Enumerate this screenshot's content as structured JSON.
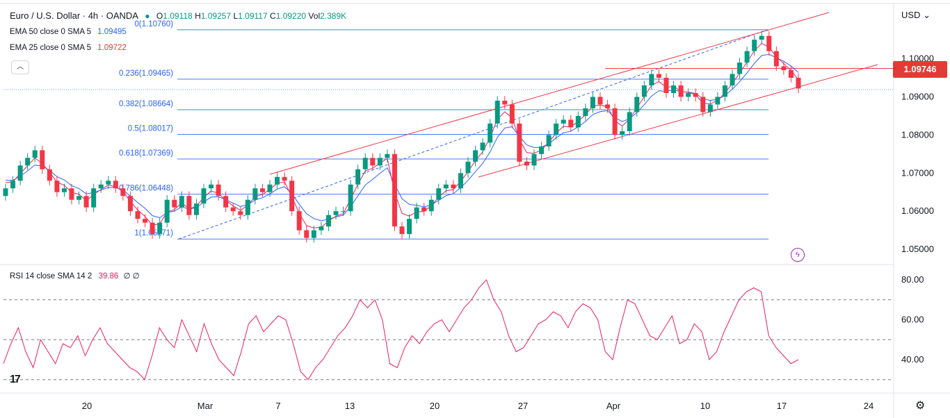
{
  "header": {
    "symbol": "Euro / U.S. Dollar · 4h · OANDA",
    "o_label": "O",
    "o": "1.09118",
    "h_label": "H",
    "h": "1.09257",
    "l_label": "L",
    "l": "1.09117",
    "c_label": "C",
    "c": "1.09220",
    "vol_label": "Vol",
    "vol": "2.389K"
  },
  "indicators": {
    "ema50_label": "EMA 50 close 0 SMA 5",
    "ema50_value": "1.09495",
    "ema25_label": "EMA 25 close 0 SMA 5",
    "ema25_value": "1.09722",
    "rsi_label": "RSI 14 close SMA 14 2",
    "rsi_value": "39.86",
    "rsi_extra": "∅ ∅"
  },
  "price_axis": {
    "currency": "USD",
    "ticks": [
      "1.10000",
      "1.09000",
      "1.08000",
      "1.07000",
      "1.06000",
      "1.05000"
    ],
    "current_price": "1.09746"
  },
  "rsi_axis": {
    "ticks": [
      "80.00",
      "60.00",
      "40.00"
    ]
  },
  "time_axis": {
    "ticks": [
      "20",
      "Mar",
      "7",
      "13",
      "20",
      "27",
      "Apr",
      "10",
      "17",
      "24"
    ]
  },
  "colors": {
    "up": "#089981",
    "down": "#f23645",
    "ema50": "#2962ff",
    "ema25": "#e91e63",
    "channel": "#f23645",
    "fib": "#2962ff",
    "rsi": "#e91e63",
    "badge": "#e53935"
  },
  "chart_data": [
    {
      "type": "candlestick",
      "title": "Euro / U.S. Dollar · 4h · OANDA",
      "ylim": [
        1.047,
        1.1105
      ],
      "close_series": [
        1.066,
        1.068,
        1.072,
        1.074,
        1.076,
        1.071,
        1.068,
        1.065,
        1.066,
        1.063,
        1.064,
        1.061,
        1.066,
        1.067,
        1.068,
        1.066,
        1.064,
        1.06,
        1.058,
        1.057,
        1.054,
        1.057,
        1.063,
        1.061,
        1.064,
        1.059,
        1.062,
        1.066,
        1.067,
        1.064,
        1.061,
        1.06,
        1.059,
        1.063,
        1.066,
        1.065,
        1.067,
        1.069,
        1.068,
        1.06,
        1.055,
        1.053,
        1.055,
        1.056,
        1.059,
        1.06,
        1.06,
        1.067,
        1.071,
        1.074,
        1.072,
        1.074,
        1.075,
        1.056,
        1.054,
        1.058,
        1.061,
        1.06,
        1.063,
        1.066,
        1.067,
        1.066,
        1.07,
        1.073,
        1.076,
        1.078,
        1.083,
        1.089,
        1.088,
        1.083,
        1.073,
        1.072,
        1.075,
        1.077,
        1.08,
        1.083,
        1.084,
        1.082,
        1.085,
        1.087,
        1.09,
        1.088,
        1.087,
        1.08,
        1.081,
        1.086,
        1.09,
        1.093,
        1.096,
        1.095,
        1.091,
        1.093,
        1.09,
        1.091,
        1.09,
        1.086,
        1.088,
        1.09,
        1.093,
        1.096,
        1.099,
        1.102,
        1.105,
        1.106,
        1.102,
        1.098,
        1.097,
        1.095,
        1.0922
      ],
      "fib_levels": [
        {
          "label": "0(1.10760)",
          "value": 1.1076
        },
        {
          "label": "0.236(1.09465)",
          "value": 1.09465
        },
        {
          "label": "0.382(1.08664)",
          "value": 1.08664
        },
        {
          "label": "0.5(1.08017)",
          "value": 1.08017
        },
        {
          "label": "0.618(1.07369)",
          "value": 1.07369
        },
        {
          "label": "0.786(1.06448)",
          "value": 1.06448
        },
        {
          "label": "1(1.05271)",
          "value": 1.05271
        }
      ],
      "horizontal_level": 1.09746
    },
    {
      "type": "line",
      "title": "RSI 14 close SMA 14 2",
      "ylim": [
        27,
        84
      ],
      "levels": [
        70,
        50,
        30
      ],
      "values": [
        38,
        48,
        56,
        44,
        36,
        50,
        44,
        38,
        48,
        46,
        52,
        42,
        50,
        56,
        48,
        44,
        40,
        36,
        34,
        30,
        42,
        56,
        50,
        46,
        60,
        52,
        44,
        58,
        48,
        40,
        36,
        32,
        44,
        58,
        62,
        54,
        58,
        62,
        60,
        48,
        34,
        30,
        36,
        40,
        46,
        52,
        56,
        62,
        70,
        66,
        70,
        60,
        38,
        36,
        46,
        52,
        48,
        54,
        58,
        60,
        54,
        60,
        66,
        70,
        76,
        80,
        70,
        64,
        52,
        44,
        46,
        52,
        58,
        60,
        64,
        62,
        56,
        64,
        68,
        66,
        60,
        44,
        40,
        56,
        70,
        68,
        60,
        52,
        50,
        56,
        62,
        48,
        50,
        58,
        54,
        40,
        44,
        54,
        62,
        70,
        74,
        76,
        74,
        52,
        46,
        42,
        38,
        40
      ]
    }
  ]
}
